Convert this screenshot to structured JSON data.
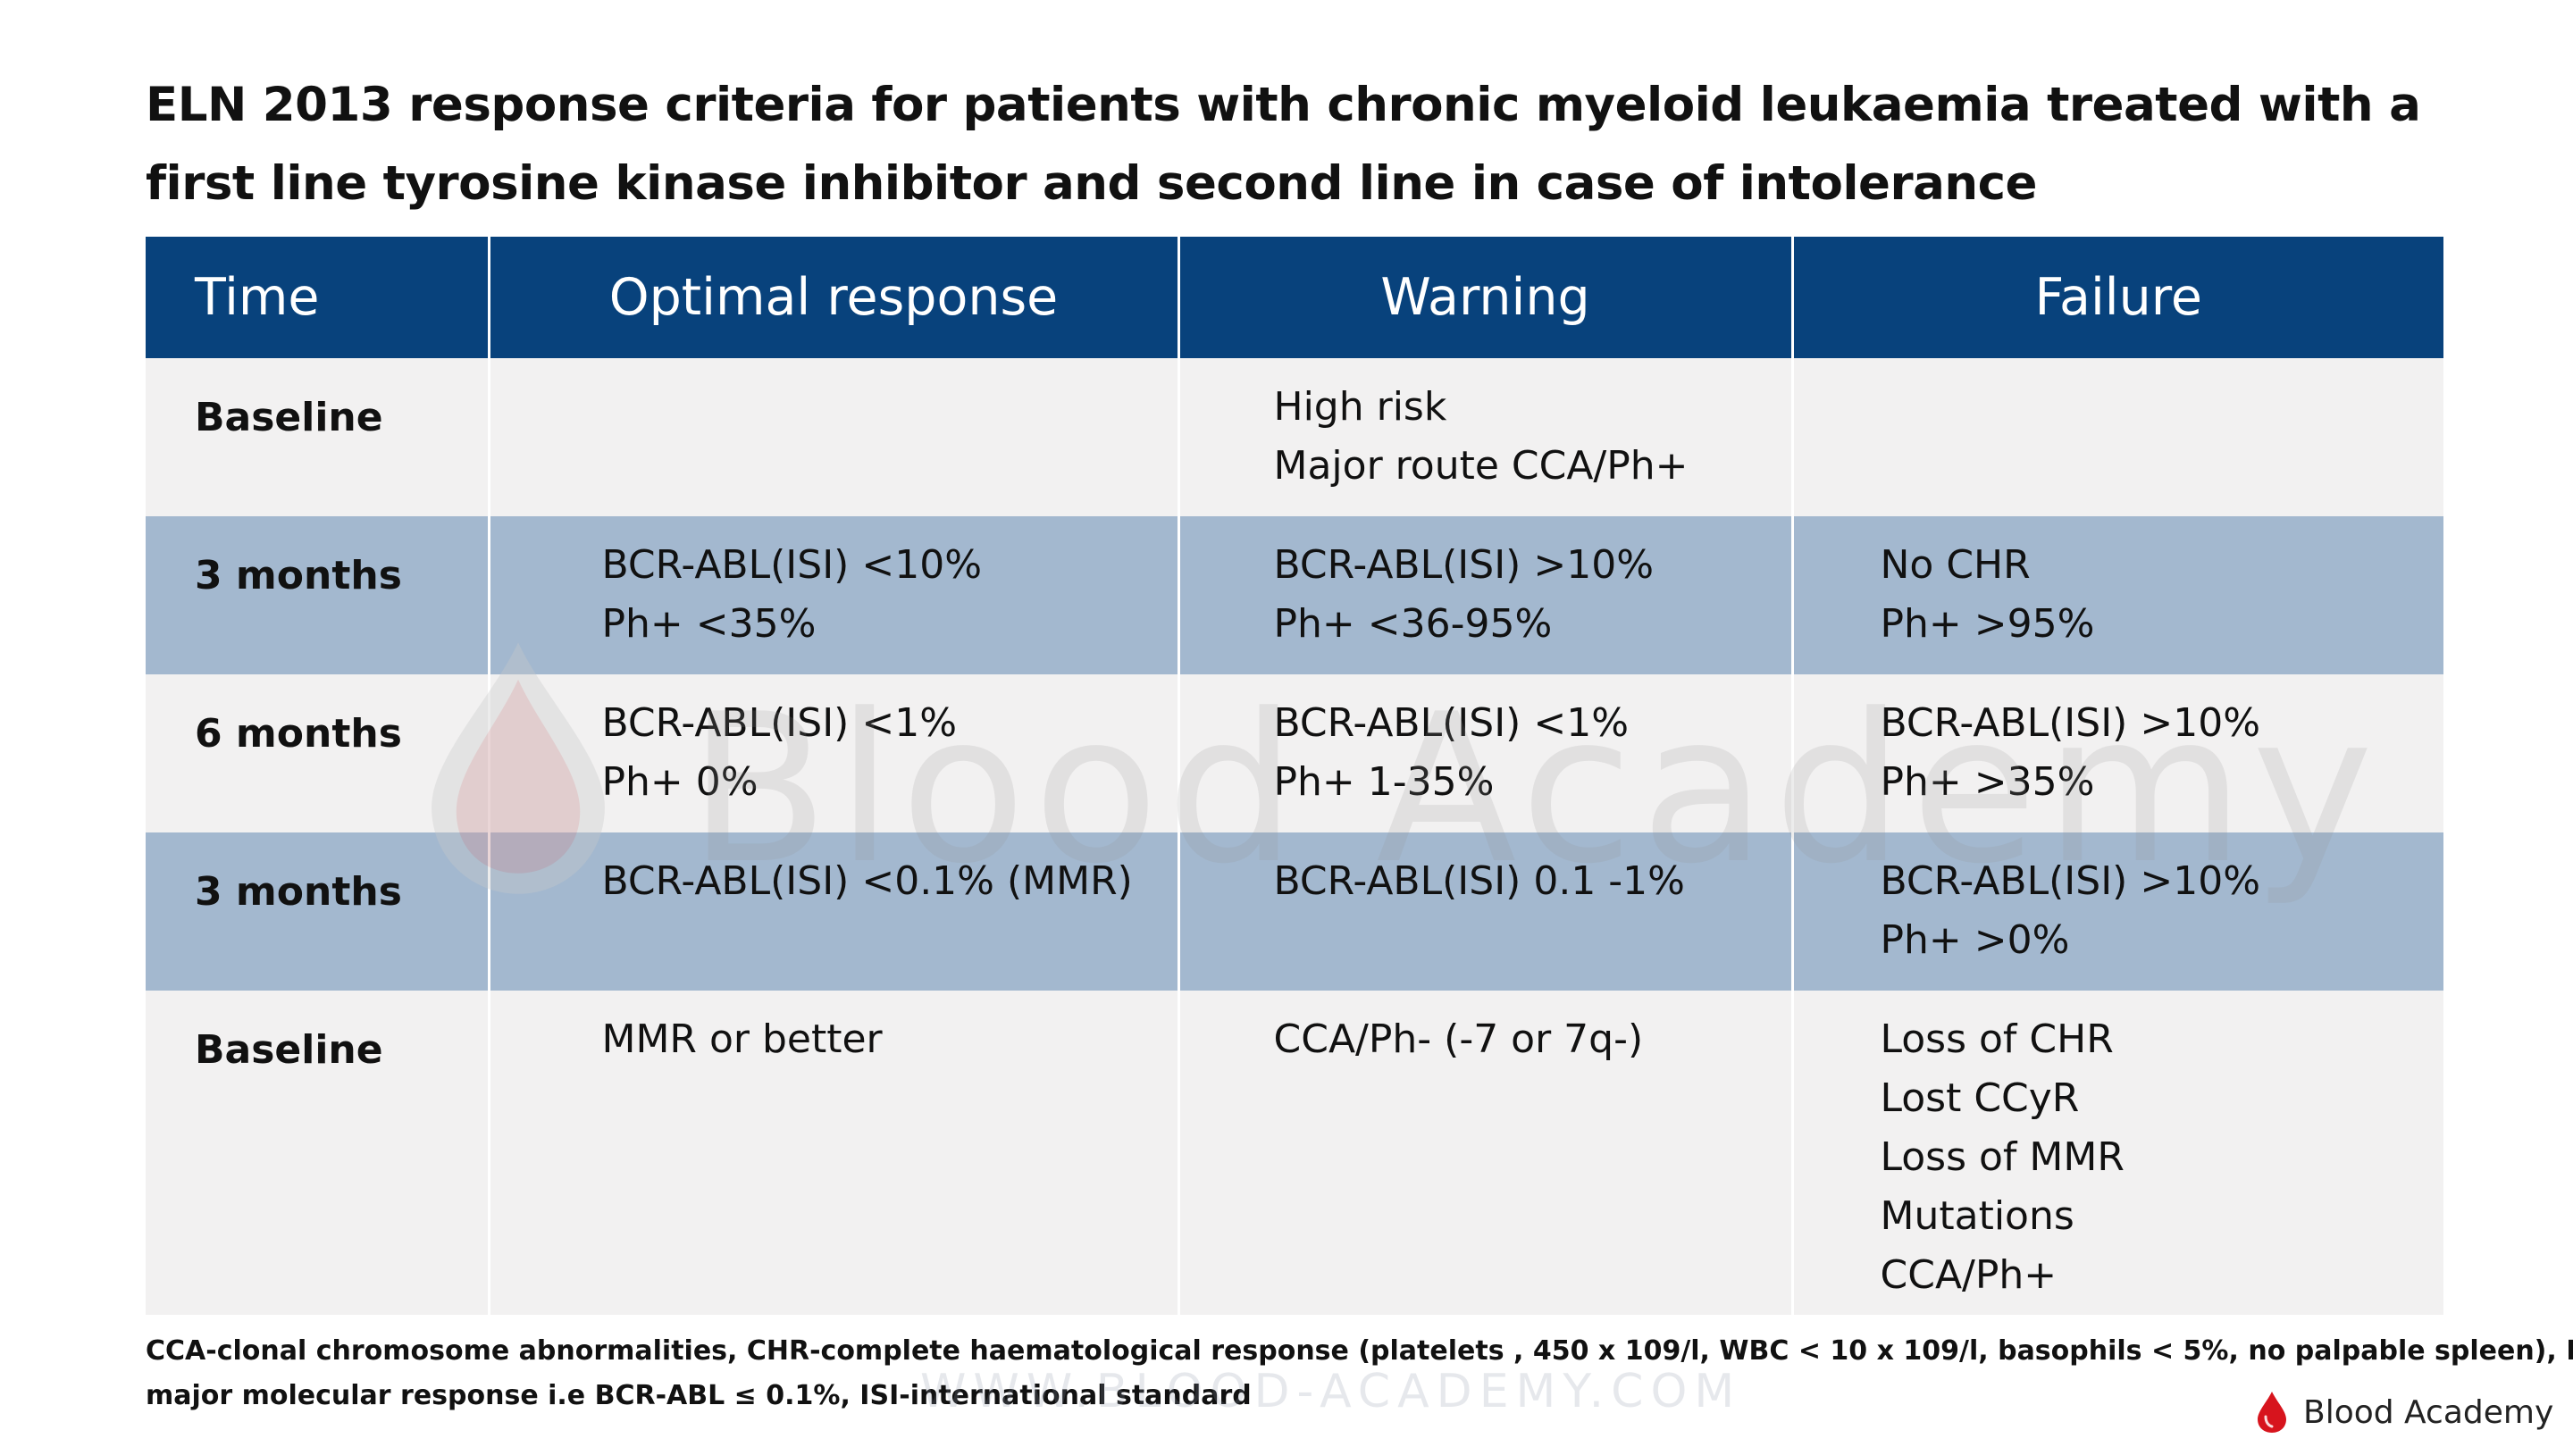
{
  "title": {
    "line1": "ELN 2013 response criteria for patients with chronic myeloid leukaemia treated with a",
    "line2": "first line tyrosine kinase inhibitor and second line in case of intolerance"
  },
  "table": {
    "headers": {
      "time": "Time",
      "optimal": "Optimal response",
      "warning": "Warning",
      "failure": "Failure"
    },
    "rows": [
      {
        "time": "Baseline",
        "optimal": [],
        "warning": [
          "High risk",
          "Major route CCA/Ph+"
        ],
        "failure": []
      },
      {
        "time": "3 months",
        "optimal": [
          "BCR-ABL(ISI) <10%",
          "Ph+ <35%"
        ],
        "warning": [
          "BCR-ABL(ISI) >10%",
          "Ph+ <36-95%"
        ],
        "failure": [
          "No CHR",
          "Ph+ >95%"
        ]
      },
      {
        "time": "6 months",
        "optimal": [
          "BCR-ABL(ISI) <1%",
          "Ph+ 0%"
        ],
        "warning": [
          "BCR-ABL(ISI) <1%",
          "Ph+ 1-35%"
        ],
        "failure": [
          "BCR-ABL(ISI) >10%",
          "Ph+ >35%"
        ]
      },
      {
        "time": "3 months",
        "optimal": [
          "BCR-ABL(ISI) <0.1% (MMR)"
        ],
        "warning": [
          "BCR-ABL(ISI) 0.1 -1%"
        ],
        "failure": [
          "BCR-ABL(ISI) >10%",
          "Ph+ >0%"
        ]
      },
      {
        "time": "Baseline",
        "optimal": [
          "MMR or better"
        ],
        "warning": [
          "CCA/Ph- (-7 or 7q-)"
        ],
        "failure": [
          "Loss of CHR",
          "Lost CCyR",
          "Loss of MMR",
          "Mutations",
          "CCA/Ph+"
        ]
      }
    ]
  },
  "footnote": {
    "line1": "CCA-clonal chromosome abnormalities, CHR-complete haematological response (platelets , 450 x 109/l, WBC < 10 x 109/l, basophils < 5%, no palpable spleen), MMR-",
    "line2": "major molecular response i.e BCR-ABL ≤ 0.1%, ISI-international standard"
  },
  "watermark": {
    "text": "Blood Academy",
    "url": "WWW.BLOOD-ACADEMY.COM"
  },
  "brand": {
    "name": "Blood Academy",
    "icon": "blood-drop-icon",
    "icon_color": "#d7141d"
  },
  "colors": {
    "header_bg": "#08427c",
    "row_light": "#f2f1f1",
    "row_blue": "#a3b8cf"
  }
}
